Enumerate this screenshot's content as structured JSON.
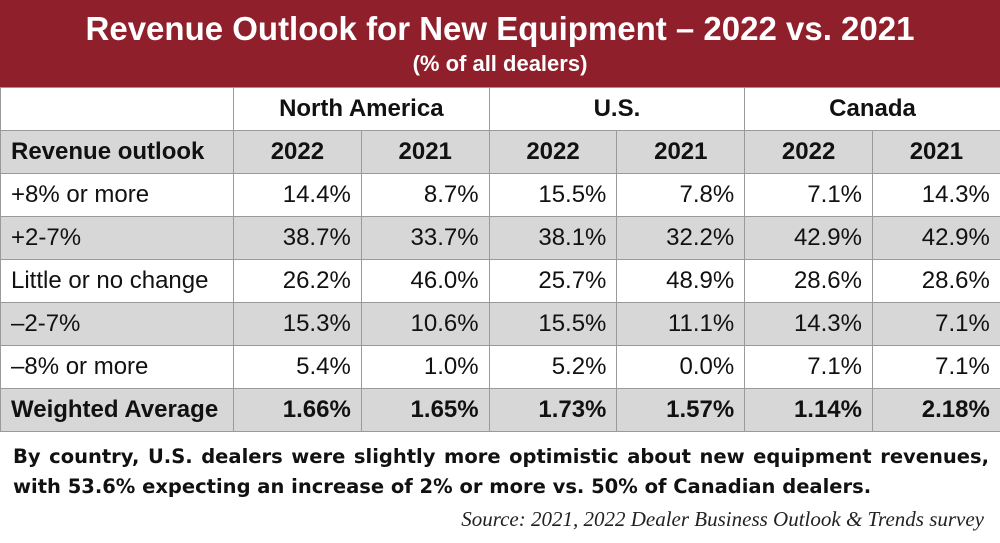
{
  "title": "Revenue Outlook for New Equipment – 2022 vs. 2021",
  "subtitle": "(% of all dealers)",
  "regions": [
    "North America",
    "U.S.",
    "Canada"
  ],
  "header": {
    "row_label": "Revenue outlook",
    "years": [
      "2022",
      "2021",
      "2022",
      "2021",
      "2022",
      "2021"
    ]
  },
  "rows": [
    {
      "label": "+8% or more",
      "values": [
        "14.4%",
        "8.7%",
        "15.5%",
        "7.8%",
        "7.1%",
        "14.3%"
      ]
    },
    {
      "label": "+2-7%",
      "values": [
        "38.7%",
        "33.7%",
        "38.1%",
        "32.2%",
        "42.9%",
        "42.9%"
      ]
    },
    {
      "label": "Little or no change",
      "values": [
        "26.2%",
        "46.0%",
        "25.7%",
        "48.9%",
        "28.6%",
        "28.6%"
      ]
    },
    {
      "label": "–2-7%",
      "values": [
        "15.3%",
        "10.6%",
        "15.5%",
        "11.1%",
        "14.3%",
        "7.1%"
      ]
    },
    {
      "label": "–8% or more",
      "values": [
        "5.4%",
        "1.0%",
        "5.2%",
        "0.0%",
        "7.1%",
        "7.1%"
      ]
    }
  ],
  "weighted_average": {
    "label": "Weighted Average",
    "values": [
      "1.66%",
      "1.65%",
      "1.73%",
      "1.57%",
      "1.14%",
      "2.18%"
    ]
  },
  "caption": "By country, U.S. dealers were slightly more optimistic about new equipment revenues, with 53.6% expecting an increase of 2% or more vs. 50% of Canadian dealers.",
  "source": "Source: 2021, 2022 Dealer Business Outlook & Trends survey",
  "colors": {
    "title_band": "#8f1f2b",
    "shade": "#d7d7d7"
  }
}
